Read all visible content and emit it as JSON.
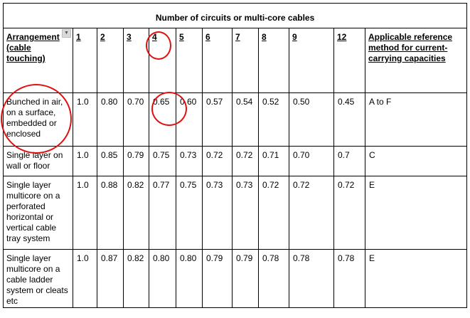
{
  "title": "Number of circuits or multi-core cables",
  "headers": {
    "arrangement": "Arrangement (cable touching)",
    "columns": [
      "1",
      "2",
      "3",
      "4",
      "5",
      "6",
      "7",
      "8",
      "9",
      "12"
    ],
    "reference": "Applicable reference method for current-carrying capacities"
  },
  "rows": [
    {
      "label": "Bunched in air, on a surface, embedded or enclosed",
      "values": [
        "1.0",
        "0.80",
        "0.70",
        "0.65",
        "0.60",
        "0.57",
        "0.54",
        "0.52",
        "0.50",
        "0.45"
      ],
      "method": "A to F"
    },
    {
      "label": "Single layer on wall or floor",
      "values": [
        "1.0",
        "0.85",
        "0.79",
        "0.75",
        "0.73",
        "0.72",
        "0.72",
        "0.71",
        "0.70",
        "0.7"
      ],
      "method": "C"
    },
    {
      "label": "Single layer multicore on a perforated horizontal or vertical cable tray system",
      "values": [
        "1.0",
        "0.88",
        "0.82",
        "0.77",
        "0.75",
        "0.73",
        "0.73",
        "0.72",
        "0.72",
        "0.72"
      ],
      "method": "E"
    },
    {
      "label": "Single layer multicore on a cable ladder system or cleats etc",
      "values": [
        "1.0",
        "0.87",
        "0.82",
        "0.80",
        "0.80",
        "0.79",
        "0.79",
        "0.78",
        "0.78",
        "0.78"
      ],
      "method": "E"
    }
  ],
  "annotation_color": "#e01010"
}
